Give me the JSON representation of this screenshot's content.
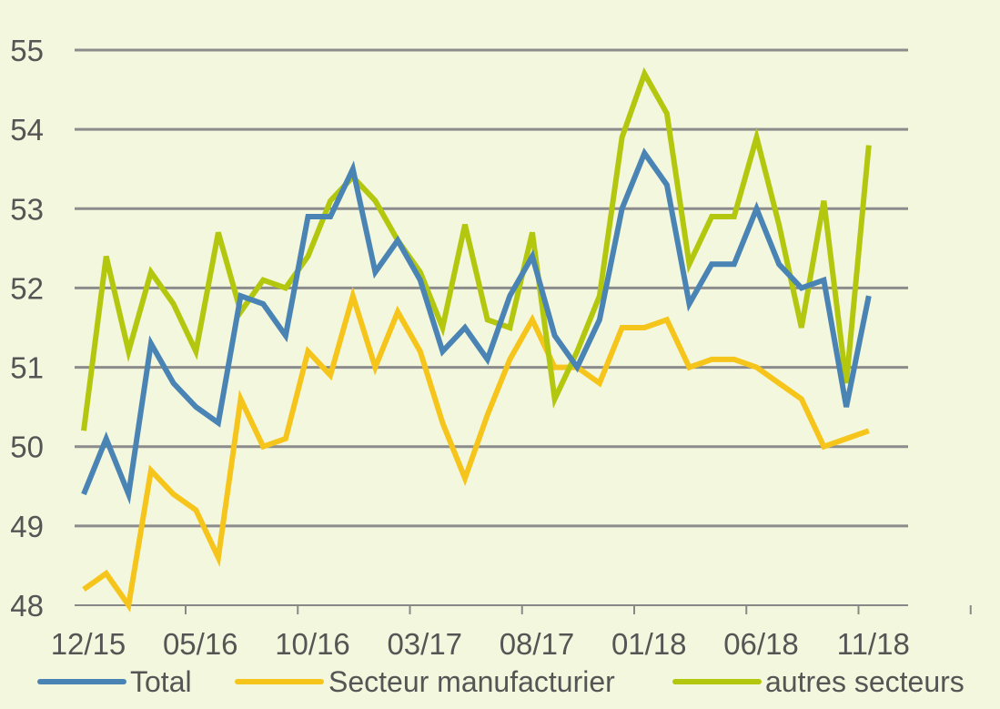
{
  "chart_data": {
    "type": "line",
    "title": "",
    "xlabel": "",
    "ylabel": "",
    "ylim": [
      48,
      55
    ],
    "yticks": [
      48,
      49,
      50,
      51,
      52,
      53,
      54,
      55
    ],
    "grid": true,
    "legend_position": "bottom",
    "x_tick_labels": [
      {
        "index": 0,
        "label": "12/15"
      },
      {
        "index": 5,
        "label": "05/16"
      },
      {
        "index": 10,
        "label": "10/16"
      },
      {
        "index": 15,
        "label": "03/17"
      },
      {
        "index": 20,
        "label": "08/17"
      },
      {
        "index": 25,
        "label": "01/18"
      },
      {
        "index": 30,
        "label": "06/18"
      },
      {
        "index": 35,
        "label": "11/18"
      }
    ],
    "x": [
      "12/15",
      "01/16",
      "02/16",
      "03/16",
      "04/16",
      "05/16",
      "06/16",
      "07/16",
      "08/16",
      "09/16",
      "10/16",
      "11/16",
      "12/16",
      "01/17",
      "02/17",
      "03/17",
      "04/17",
      "05/17",
      "06/17",
      "07/17",
      "08/17",
      "09/17",
      "10/17",
      "11/17",
      "12/17",
      "01/18",
      "02/18",
      "03/18",
      "04/18",
      "05/18",
      "06/18",
      "07/18",
      "08/18",
      "09/18",
      "10/18",
      "11/18"
    ],
    "series": [
      {
        "name": "Total",
        "color": "#4a84b4",
        "values": [
          49.4,
          50.1,
          49.4,
          51.3,
          50.8,
          50.5,
          50.3,
          51.9,
          51.8,
          51.4,
          52.9,
          52.9,
          53.5,
          52.2,
          52.6,
          52.1,
          51.2,
          51.5,
          51.1,
          51.9,
          52.4,
          51.4,
          51.0,
          51.6,
          53.0,
          53.7,
          53.3,
          51.8,
          52.3,
          52.3,
          53.0,
          52.3,
          52.0,
          52.1,
          50.5,
          51.9
        ]
      },
      {
        "name": "Secteur manufacturier",
        "color": "#f6c51b",
        "values": [
          48.2,
          48.4,
          48.0,
          49.7,
          49.4,
          49.2,
          48.6,
          50.6,
          50.0,
          50.1,
          51.2,
          50.9,
          51.9,
          51.0,
          51.7,
          51.2,
          50.3,
          49.6,
          50.4,
          51.1,
          51.6,
          51.0,
          51.0,
          50.8,
          51.5,
          51.5,
          51.6,
          51.0,
          51.1,
          51.1,
          51.0,
          50.8,
          50.6,
          50.0,
          50.1,
          50.2
        ]
      },
      {
        "name": "autres secteurs",
        "color": "#b4c70f",
        "values": [
          50.2,
          52.4,
          51.2,
          52.2,
          51.8,
          51.2,
          52.7,
          51.7,
          52.1,
          52.0,
          52.4,
          53.1,
          53.4,
          53.1,
          52.6,
          52.2,
          51.5,
          52.8,
          51.6,
          51.5,
          52.7,
          50.6,
          51.2,
          51.9,
          53.9,
          54.7,
          54.2,
          52.3,
          52.9,
          52.9,
          53.9,
          52.8,
          51.5,
          53.1,
          50.8,
          53.8
        ]
      }
    ],
    "axis_color": "#888888",
    "grid_color": "#8c8c8c"
  }
}
